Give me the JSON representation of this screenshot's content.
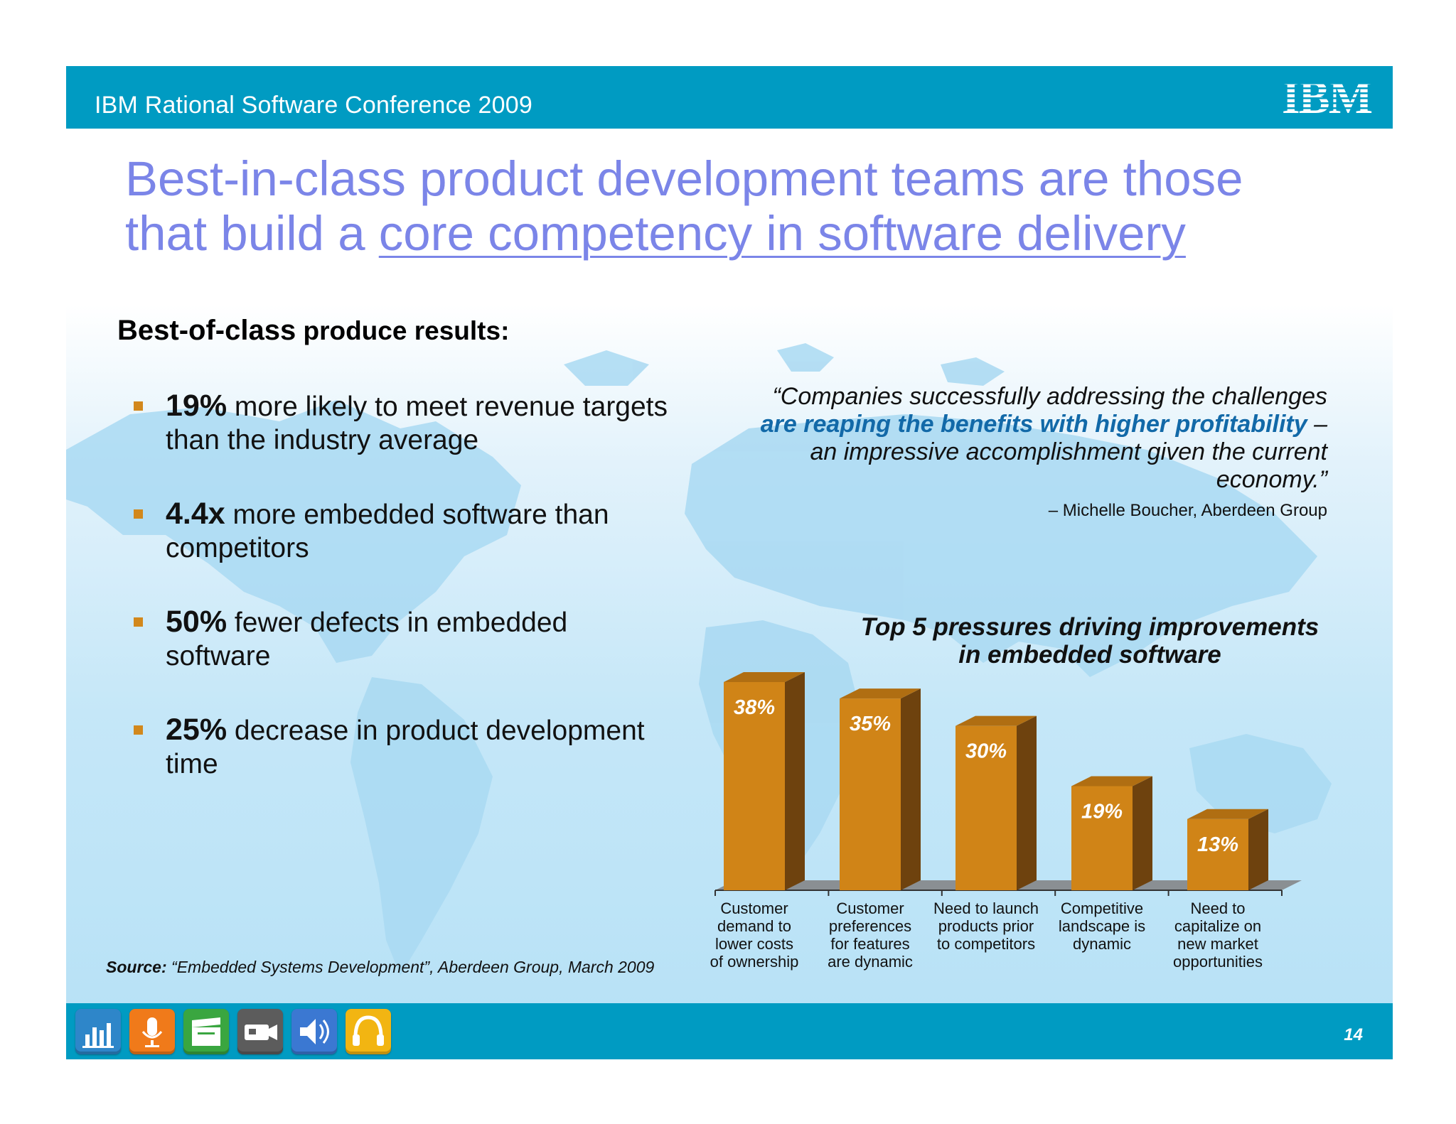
{
  "header": {
    "conference": "IBM Rational Software Conference 2009",
    "logo_text": "IBM"
  },
  "headline": {
    "line1": "Best-in-class product development teams are those",
    "line2_plain": "that build a ",
    "line2_underlined": "core competency in software delivery"
  },
  "results": {
    "title_bold": "Best-of-class",
    "title_rest": " produce results",
    "title_colon": ":",
    "bullets": [
      {
        "stat": "19%",
        "text": " more likely to meet revenue targets than the industry average"
      },
      {
        "stat": "4.4x",
        "text": " more embedded software than competitors"
      },
      {
        "stat": "50%",
        "text": " fewer defects in  embedded software"
      },
      {
        "stat": "25%",
        "text": " decrease in product development time"
      }
    ]
  },
  "quote": {
    "part1": "“Companies successfully addressing the  challenges ",
    "highlight": "are reaping the benefits with higher profitability",
    "part2": " – an impressive accomplishment given the current economy.”",
    "attribution": "– Michelle Boucher, Aberdeen Group"
  },
  "source": {
    "label": "Source:",
    "text": "  “Embedded Systems Development”, Aberdeen Group, March 2009"
  },
  "chart_data": {
    "type": "bar",
    "title": "Top 5 pressures driving improvements in embedded software",
    "title_lines": [
      "Top 5 pressures driving improvements",
      "in embedded software"
    ],
    "categories": [
      "Customer demand to lower costs of ownership",
      "Customer preferences for features are dynamic",
      "Need to launch products prior to competitors",
      "Competitive landscape is dynamic",
      "Need to capitalize on new market opportunities"
    ],
    "category_lines": [
      [
        "Customer",
        "demand to",
        "lower costs",
        "of ownership"
      ],
      [
        "Customer",
        "preferences",
        "for features",
        "are dynamic"
      ],
      [
        "Need to launch",
        "products prior",
        "to competitors"
      ],
      [
        "Competitive",
        "landscape is",
        "dynamic"
      ],
      [
        "Need to",
        "capitalize on",
        "new market",
        "opportunities"
      ]
    ],
    "values": [
      38,
      35,
      30,
      19,
      13
    ],
    "data_labels": [
      "38%",
      "35%",
      "30%",
      "19%",
      "13%"
    ],
    "ylim": [
      0,
      40
    ],
    "grid": false,
    "bar_color": "#d08417"
  },
  "footer": {
    "page_number": "14",
    "icons": [
      {
        "name": "chart-icon",
        "color": "#2e86c9"
      },
      {
        "name": "microphone-icon",
        "color": "#f07a1a"
      },
      {
        "name": "clapperboard-icon",
        "color": "#3aa640"
      },
      {
        "name": "video-camera-icon",
        "color": "#5c5c5c"
      },
      {
        "name": "speaker-icon",
        "color": "#3b78d2"
      },
      {
        "name": "headphones-icon",
        "color": "#f2b512"
      }
    ]
  }
}
